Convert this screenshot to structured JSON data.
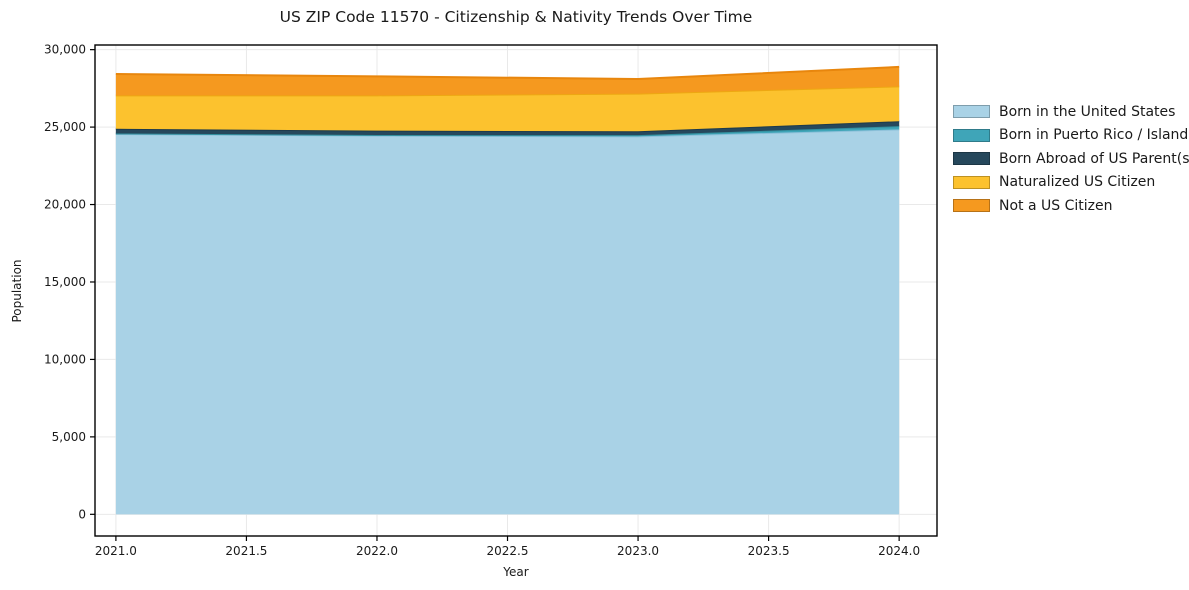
{
  "chart_data": {
    "type": "area",
    "stacked": true,
    "title": "US ZIP Code 11570 - Citizenship & Nativity Trends Over Time",
    "xlabel": "Year",
    "ylabel": "Population",
    "x": [
      2021,
      2022,
      2023,
      2024
    ],
    "series": [
      {
        "name": "Born in the United States",
        "color": "#a9d2e6",
        "edge": "#8cc0d9",
        "values": [
          24550,
          24450,
          24400,
          24850
        ]
      },
      {
        "name": "Born in Puerto Rico / Islands",
        "color": "#3fa5b8",
        "edge": "#33909f",
        "values": [
          40,
          40,
          80,
          210
        ]
      },
      {
        "name": "Born Abroad of US Parent(s)",
        "color": "#26485c",
        "edge": "#1d3a4c",
        "values": [
          300,
          280,
          250,
          320
        ]
      },
      {
        "name": "Naturalized US Citizen",
        "color": "#fcc22e",
        "edge": "#eda812",
        "values": [
          2155,
          2280,
          2430,
          2250
        ]
      },
      {
        "name": "Not a US Citizen",
        "color": "#f5991f",
        "edge": "#e8860d",
        "values": [
          1385,
          1225,
          945,
          1255
        ]
      }
    ],
    "totals": [
      28430,
      28275,
      28105,
      28885
    ],
    "xlim": [
      2020.92,
      2024.145
    ],
    "ylim": [
      -1400,
      30300
    ],
    "xticks": [
      2021.0,
      2021.5,
      2022.0,
      2022.5,
      2023.0,
      2023.5,
      2024.0
    ],
    "xtick_labels": [
      "2021.0",
      "2021.5",
      "2022.0",
      "2022.5",
      "2023.0",
      "2023.5",
      "2024.0"
    ],
    "yticks": [
      0,
      5000,
      10000,
      15000,
      20000,
      25000,
      30000
    ],
    "ytick_labels": [
      "0",
      "5,000",
      "10,000",
      "15,000",
      "20,000",
      "25,000",
      "30,000"
    ],
    "grid": true,
    "grid_color": "#e9e9e9",
    "spine_color": "#000000",
    "legend_position": "right-outside"
  }
}
